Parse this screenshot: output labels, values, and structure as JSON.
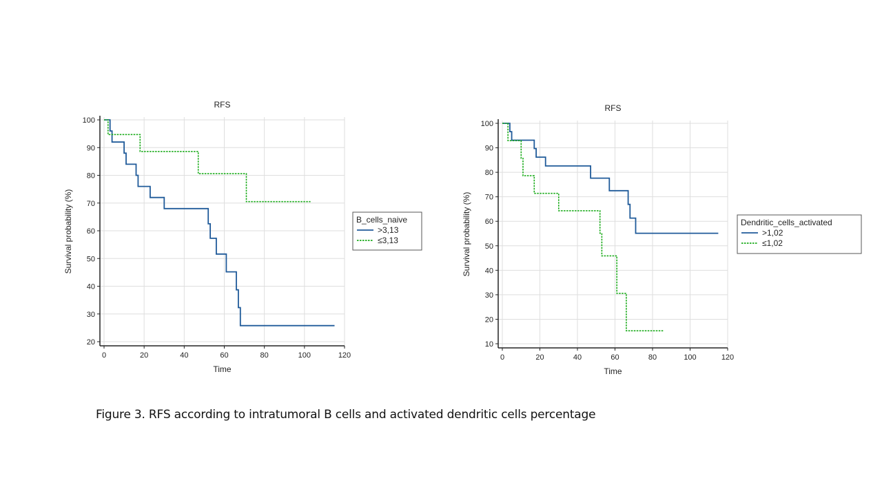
{
  "colors": {
    "series_1": "#1f5a99",
    "series_2": "#1aab1a",
    "grid": "#dedede",
    "axis": "#222222"
  },
  "chart_data": [
    {
      "type": "line",
      "subtype": "kaplan-meier step",
      "title": "RFS",
      "xlabel": "Time",
      "ylabel": "Survival probability (%)",
      "xlim": [
        0,
        120
      ],
      "ylim": [
        20,
        100
      ],
      "x_ticks": [
        0,
        20,
        40,
        60,
        80,
        100,
        120
      ],
      "y_ticks": [
        20,
        30,
        40,
        50,
        60,
        70,
        80,
        90,
        100
      ],
      "grid": true,
      "legend_position": "right",
      "legend_title": "B_cells_naive",
      "series": [
        {
          "name": ">3,13",
          "style": "solid",
          "points": [
            [
              0,
              100
            ],
            [
              3,
              100
            ],
            [
              3,
              96
            ],
            [
              4,
              96
            ],
            [
              4,
              92
            ],
            [
              10,
              92
            ],
            [
              10,
              88
            ],
            [
              11,
              88
            ],
            [
              11,
              84
            ],
            [
              16,
              84
            ],
            [
              16,
              80
            ],
            [
              17,
              80
            ],
            [
              17,
              76
            ],
            [
              23,
              76
            ],
            [
              23,
              72
            ],
            [
              30,
              72
            ],
            [
              30,
              68
            ],
            [
              52,
              68
            ],
            [
              52,
              62.5
            ],
            [
              53,
              62.5
            ],
            [
              53,
              57.3
            ],
            [
              56,
              57.3
            ],
            [
              56,
              51.6
            ],
            [
              61,
              51.6
            ],
            [
              61,
              45.2
            ],
            [
              66,
              45.2
            ],
            [
              66,
              38.7
            ],
            [
              67,
              38.7
            ],
            [
              67,
              32.3
            ],
            [
              68,
              32.3
            ],
            [
              68,
              25.8
            ],
            [
              115,
              25.8
            ]
          ]
        },
        {
          "name": "≤3,13",
          "style": "dashed",
          "points": [
            [
              0,
              100
            ],
            [
              2,
              100
            ],
            [
              2,
              94.7
            ],
            [
              18,
              94.7
            ],
            [
              18,
              88.6
            ],
            [
              47,
              88.6
            ],
            [
              47,
              80.6
            ],
            [
              71,
              80.6
            ],
            [
              71,
              70.5
            ],
            [
              103,
              70.5
            ]
          ]
        }
      ]
    },
    {
      "type": "line",
      "subtype": "kaplan-meier step",
      "title": "RFS",
      "xlabel": "Time",
      "ylabel": "Survival probability (%)",
      "xlim": [
        0,
        120
      ],
      "ylim": [
        10,
        100
      ],
      "x_ticks": [
        0,
        20,
        40,
        60,
        80,
        100,
        120
      ],
      "y_ticks": [
        10,
        20,
        30,
        40,
        50,
        60,
        70,
        80,
        90,
        100
      ],
      "grid": true,
      "legend_position": "right",
      "legend_title": "Dendritic_cells_activated",
      "series": [
        {
          "name": ">1,02",
          "style": "solid",
          "points": [
            [
              0,
              100
            ],
            [
              4,
              100
            ],
            [
              4,
              96.6
            ],
            [
              5,
              96.6
            ],
            [
              5,
              93.1
            ],
            [
              17,
              93.1
            ],
            [
              17,
              89.7
            ],
            [
              18,
              89.7
            ],
            [
              18,
              86.2
            ],
            [
              23,
              86.2
            ],
            [
              23,
              82.6
            ],
            [
              47,
              82.6
            ],
            [
              47,
              77.6
            ],
            [
              57,
              77.6
            ],
            [
              57,
              72.5
            ],
            [
              67,
              72.5
            ],
            [
              67,
              66.9
            ],
            [
              68,
              66.9
            ],
            [
              68,
              61.3
            ],
            [
              71,
              61.3
            ],
            [
              71,
              55.1
            ],
            [
              115,
              55.1
            ]
          ]
        },
        {
          "name": "≤1,02",
          "style": "dashed",
          "points": [
            [
              0,
              100
            ],
            [
              3,
              100
            ],
            [
              3,
              92.9
            ],
            [
              10,
              92.9
            ],
            [
              10,
              85.7
            ],
            [
              11,
              85.7
            ],
            [
              11,
              78.6
            ],
            [
              17,
              78.6
            ],
            [
              17,
              71.4
            ],
            [
              30,
              71.4
            ],
            [
              30,
              64.3
            ],
            [
              52,
              64.3
            ],
            [
              52,
              55.1
            ],
            [
              53,
              55.1
            ],
            [
              53,
              45.9
            ],
            [
              61,
              45.9
            ],
            [
              61,
              30.6
            ],
            [
              66,
              30.6
            ],
            [
              66,
              15.3
            ],
            [
              86,
              15.3
            ]
          ]
        }
      ]
    }
  ],
  "caption": "Figure 3. RFS according to intratumoral B cells and activated dendritic cells percentage"
}
